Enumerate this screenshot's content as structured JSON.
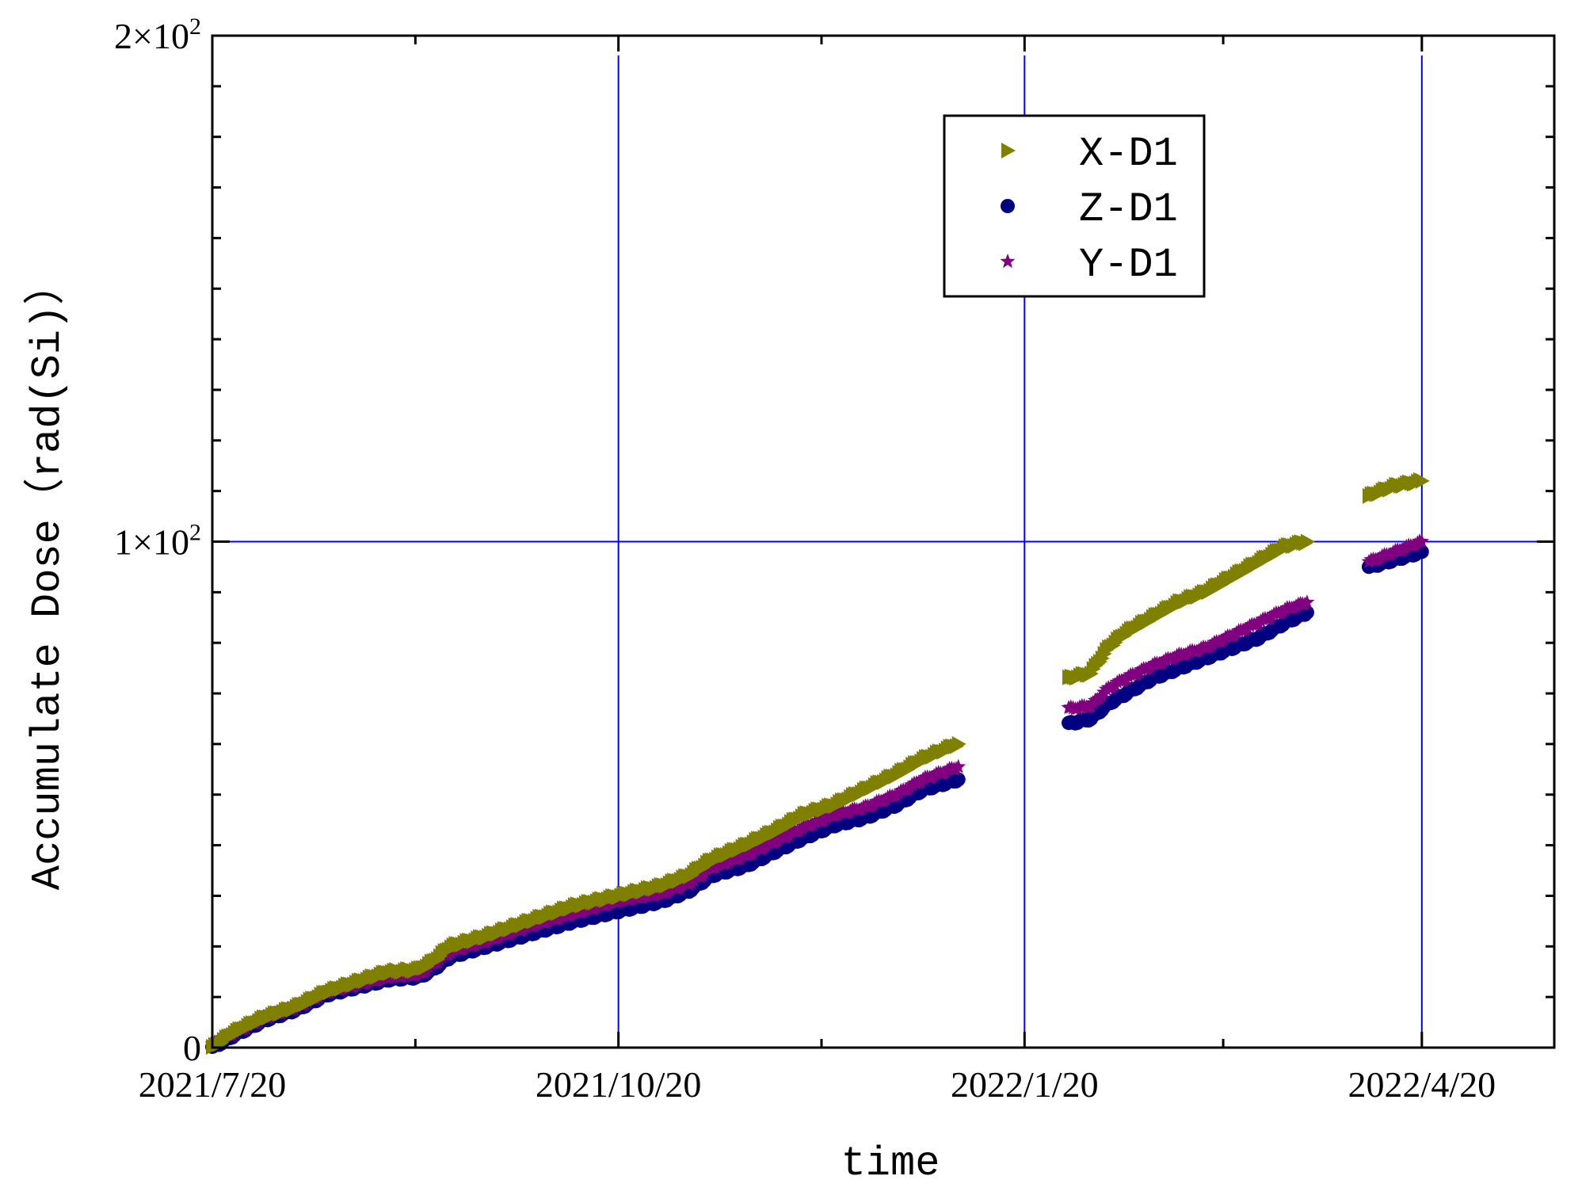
{
  "chart_data": {
    "type": "scatter",
    "xlabel": "time",
    "ylabel": "Accumulate Dose（rad(Si)）",
    "x_ticks": [
      "2021/7/20",
      "2021/10/20",
      "2022/1/20",
      "2022/4/20"
    ],
    "y_ticks": [
      {
        "value": 0,
        "base": "0",
        "exp": ""
      },
      {
        "value": 100,
        "base": "1×10",
        "exp": "2"
      },
      {
        "value": 200,
        "base": "2×10",
        "exp": "2"
      }
    ],
    "xlim": [
      "2021-07-20",
      "2022-05-20"
    ],
    "ylim": [
      0,
      200
    ],
    "grid": "major",
    "grid_color": "#0000ff",
    "legend_position": "top-right",
    "series": [
      {
        "name": "X-D1",
        "color": "#808000",
        "marker": "triangle-right",
        "segments": [
          [
            [
              "2021-07-20",
              0
            ],
            [
              "2021-07-25",
              3
            ],
            [
              "2021-08-01",
              6
            ],
            [
              "2021-08-08",
              8
            ],
            [
              "2021-08-15",
              11
            ],
            [
              "2021-08-22",
              13
            ],
            [
              "2021-08-29",
              15
            ],
            [
              "2021-09-05",
              15.5
            ],
            [
              "2021-09-08",
              17
            ],
            [
              "2021-09-12",
              20
            ],
            [
              "2021-09-20",
              22
            ],
            [
              "2021-09-30",
              25
            ],
            [
              "2021-10-10",
              28
            ],
            [
              "2021-10-20",
              30
            ],
            [
              "2021-10-30",
              32
            ],
            [
              "2021-11-05",
              34
            ],
            [
              "2021-11-10",
              37
            ],
            [
              "2021-11-18",
              40
            ],
            [
              "2021-11-25",
              43
            ],
            [
              "2021-12-01",
              46
            ],
            [
              "2021-12-08",
              48
            ],
            [
              "2021-12-15",
              51
            ],
            [
              "2021-12-22",
              54
            ],
            [
              "2021-12-28",
              57
            ],
            [
              "2022-01-05",
              60
            ]
          ],
          [
            [
              "2022-01-30",
              73
            ],
            [
              "2022-02-04",
              74
            ],
            [
              "2022-02-08",
              79
            ],
            [
              "2022-02-12",
              82
            ],
            [
              "2022-02-18",
              85
            ],
            [
              "2022-02-24",
              88
            ],
            [
              "2022-03-02",
              90
            ],
            [
              "2022-03-08",
              93
            ],
            [
              "2022-03-14",
              96
            ],
            [
              "2022-03-20",
              99
            ],
            [
              "2022-03-25",
              100
            ]
          ],
          [
            [
              "2022-04-08",
              109
            ],
            [
              "2022-04-14",
              111
            ],
            [
              "2022-04-20",
              112
            ]
          ]
        ]
      },
      {
        "name": "Z-D1",
        "color": "#000080",
        "marker": "circle",
        "segments": [
          [
            [
              "2021-07-20",
              0
            ],
            [
              "2021-07-25",
              2.5
            ],
            [
              "2021-08-01",
              5.5
            ],
            [
              "2021-08-08",
              7.5
            ],
            [
              "2021-08-15",
              10.5
            ],
            [
              "2021-08-22",
              12
            ],
            [
              "2021-08-29",
              13.5
            ],
            [
              "2021-09-05",
              14
            ],
            [
              "2021-09-08",
              15.5
            ],
            [
              "2021-09-12",
              18
            ],
            [
              "2021-09-20",
              20
            ],
            [
              "2021-09-30",
              22.5
            ],
            [
              "2021-10-10",
              25
            ],
            [
              "2021-10-20",
              27
            ],
            [
              "2021-10-30",
              29
            ],
            [
              "2021-11-05",
              31
            ],
            [
              "2021-11-10",
              34
            ],
            [
              "2021-11-18",
              36
            ],
            [
              "2021-11-25",
              39
            ],
            [
              "2021-12-01",
              41.5
            ],
            [
              "2021-12-08",
              44
            ],
            [
              "2021-12-15",
              45.5
            ],
            [
              "2021-12-22",
              48
            ],
            [
              "2021-12-28",
              51
            ],
            [
              "2022-01-05",
              53
            ]
          ],
          [
            [
              "2022-01-30",
              64
            ],
            [
              "2022-02-04",
              65
            ],
            [
              "2022-02-08",
              68
            ],
            [
              "2022-02-12",
              70
            ],
            [
              "2022-02-18",
              73
            ],
            [
              "2022-02-24",
              75
            ],
            [
              "2022-03-02",
              77
            ],
            [
              "2022-03-08",
              79
            ],
            [
              "2022-03-14",
              81
            ],
            [
              "2022-03-20",
              84
            ],
            [
              "2022-03-25",
              86
            ]
          ],
          [
            [
              "2022-04-08",
              95
            ],
            [
              "2022-04-14",
              96.5
            ],
            [
              "2022-04-20",
              98
            ]
          ]
        ]
      },
      {
        "name": "Y-D1",
        "color": "#800080",
        "marker": "star",
        "segments": [
          [
            [
              "2021-07-20",
              0.5
            ],
            [
              "2021-07-25",
              3
            ],
            [
              "2021-08-01",
              6
            ],
            [
              "2021-08-08",
              8
            ],
            [
              "2021-08-15",
              11
            ],
            [
              "2021-08-22",
              12.5
            ],
            [
              "2021-08-29",
              14
            ],
            [
              "2021-09-05",
              14.5
            ],
            [
              "2021-09-08",
              16.5
            ],
            [
              "2021-09-12",
              19
            ],
            [
              "2021-09-20",
              21
            ],
            [
              "2021-09-30",
              24
            ],
            [
              "2021-10-10",
              26.5
            ],
            [
              "2021-10-20",
              29
            ],
            [
              "2021-10-30",
              30.5
            ],
            [
              "2021-11-05",
              32.5
            ],
            [
              "2021-11-10",
              35.5
            ],
            [
              "2021-11-18",
              38
            ],
            [
              "2021-11-25",
              41
            ],
            [
              "2021-12-01",
              43.5
            ],
            [
              "2021-12-08",
              46
            ],
            [
              "2021-12-15",
              47.5
            ],
            [
              "2021-12-22",
              50
            ],
            [
              "2021-12-28",
              53
            ],
            [
              "2022-01-05",
              55.5
            ]
          ],
          [
            [
              "2022-01-30",
              67
            ],
            [
              "2022-02-04",
              67.5
            ],
            [
              "2022-02-08",
              71
            ],
            [
              "2022-02-12",
              73
            ],
            [
              "2022-02-18",
              75.5
            ],
            [
              "2022-02-24",
              77.5
            ],
            [
              "2022-03-02",
              79
            ],
            [
              "2022-03-08",
              81.5
            ],
            [
              "2022-03-14",
              84
            ],
            [
              "2022-03-20",
              86.5
            ],
            [
              "2022-03-25",
              88
            ]
          ],
          [
            [
              "2022-04-08",
              96
            ],
            [
              "2022-04-14",
              98
            ],
            [
              "2022-04-20",
              100
            ]
          ]
        ]
      }
    ]
  }
}
